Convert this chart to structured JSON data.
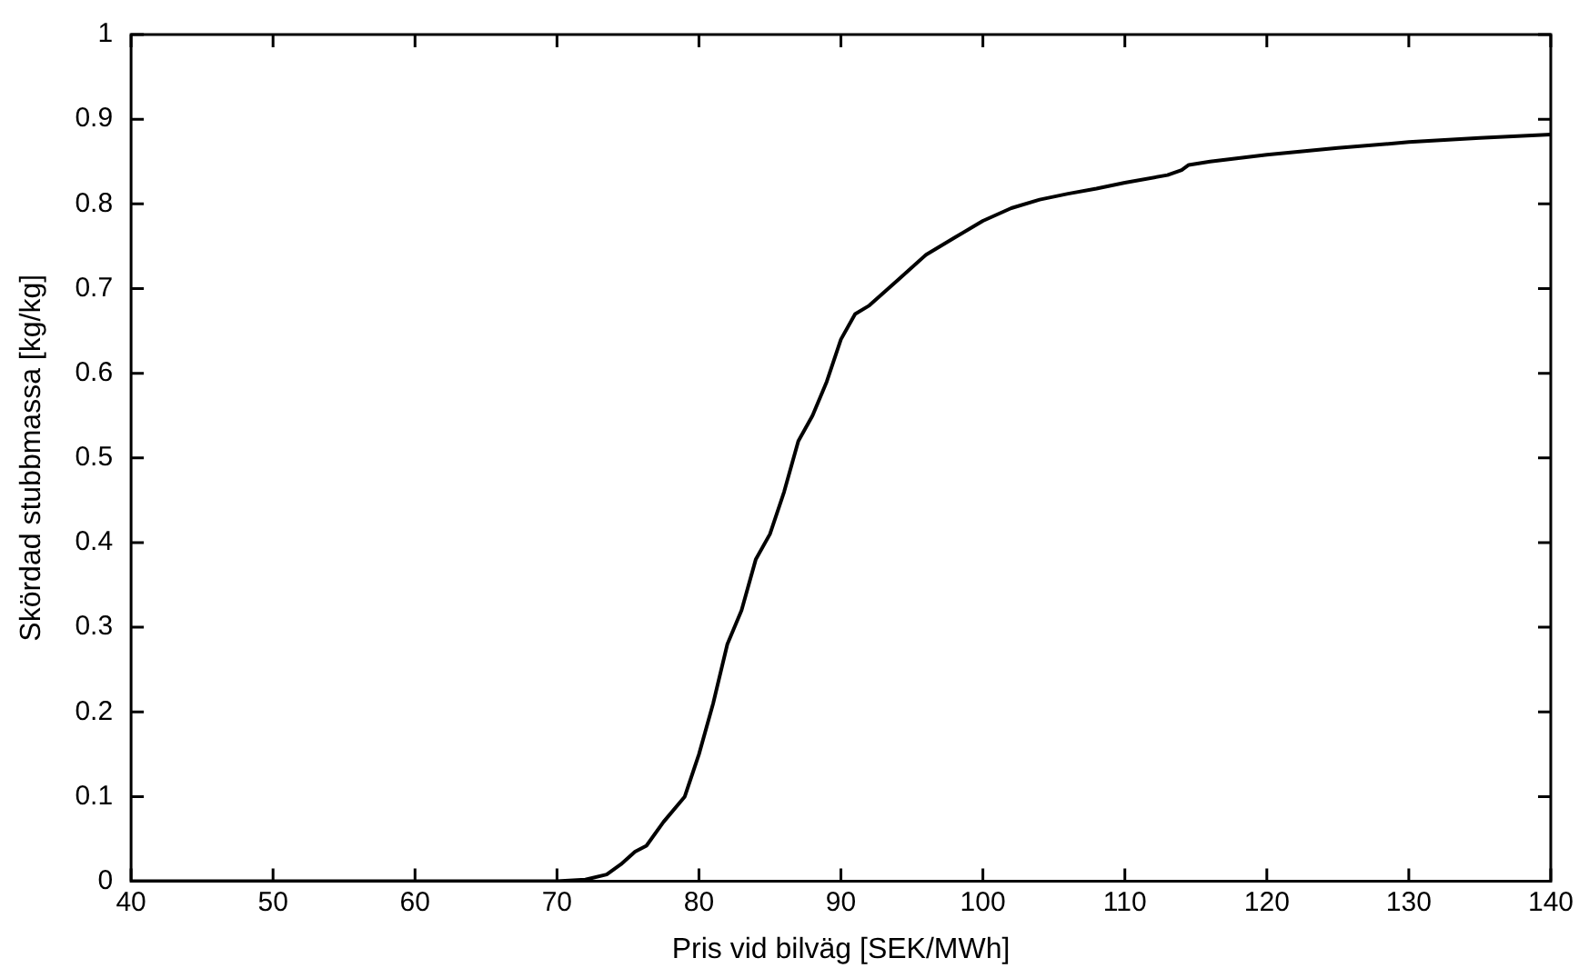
{
  "chart_data": {
    "type": "line",
    "xlabel": "Pris vid bilväg [SEK/MWh]",
    "ylabel": "Skördad stubbmassa [kg/kg]",
    "xlim": [
      40,
      140
    ],
    "xticks": [
      40,
      50,
      60,
      70,
      80,
      90,
      100,
      110,
      120,
      130,
      140
    ],
    "ylim": [
      0,
      1
    ],
    "yticks": [
      0,
      0.1,
      0.2,
      0.3,
      0.4,
      0.5,
      0.6,
      0.7,
      0.8,
      0.9,
      1
    ],
    "grid": false,
    "legend": false,
    "marker": "none",
    "line_style": "solid",
    "series": [
      {
        "color": "#000000",
        "x": [
          40,
          70,
          72,
          73.5,
          74.5,
          75.5,
          76.3,
          77.5,
          79,
          80,
          81,
          82,
          83,
          84,
          85,
          86,
          87,
          88,
          89,
          90,
          91,
          92,
          94,
          96,
          98,
          100,
          102,
          104,
          106,
          108,
          110,
          113,
          114,
          114.5,
          116,
          120,
          125,
          130,
          135,
          140
        ],
        "values": [
          0,
          0,
          0.002,
          0.008,
          0.02,
          0.035,
          0.042,
          0.07,
          0.1,
          0.15,
          0.21,
          0.28,
          0.32,
          0.38,
          0.41,
          0.46,
          0.52,
          0.55,
          0.59,
          0.64,
          0.67,
          0.68,
          0.71,
          0.74,
          0.76,
          0.78,
          0.795,
          0.805,
          0.812,
          0.818,
          0.825,
          0.834,
          0.84,
          0.846,
          0.85,
          0.858,
          0.866,
          0.873,
          0.878,
          0.882
        ]
      }
    ]
  }
}
